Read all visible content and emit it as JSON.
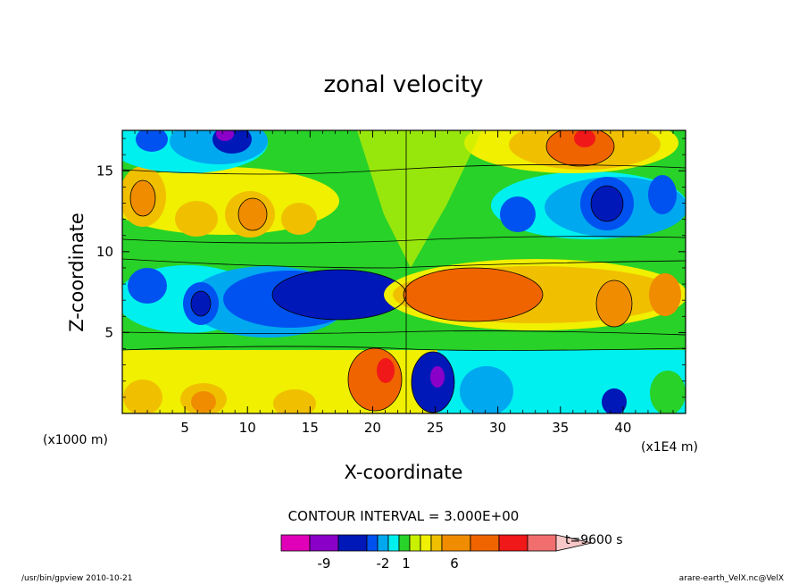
{
  "chart_data": {
    "type": "heatmap",
    "title": "zonal velocity",
    "xlabel": "X-coordinate",
    "ylabel": "Z-coordinate",
    "x_unit": "(x1E4 m)",
    "y_unit": "(x1000 m)",
    "xlim": [
      0,
      45
    ],
    "ylim": [
      0,
      17.5
    ],
    "x_ticks": [
      "5",
      "10",
      "15",
      "20",
      "25",
      "30",
      "35",
      "40"
    ],
    "y_ticks": [
      "5",
      "10",
      "15"
    ],
    "contour_interval": "CONTOUR INTERVAL = 3.000E+00",
    "time_label": "t=9600 s",
    "colorbar": {
      "colors": [
        "#e000b8",
        "#8a00c8",
        "#0018b8",
        "#0052f0",
        "#00a8f0",
        "#00f0f0",
        "#28d228",
        "#c8f000",
        "#f0f000",
        "#f0c000",
        "#f08c00",
        "#f06400",
        "#f01818",
        "#f06e6e",
        "#f8c8c8"
      ],
      "tick_labels": [
        "-9",
        "-2",
        "1",
        "6"
      ]
    },
    "footer_left": "/usr/bin/gpview   2010-10-21",
    "footer_right": "arare-earth_VelX.nc@VelX"
  }
}
